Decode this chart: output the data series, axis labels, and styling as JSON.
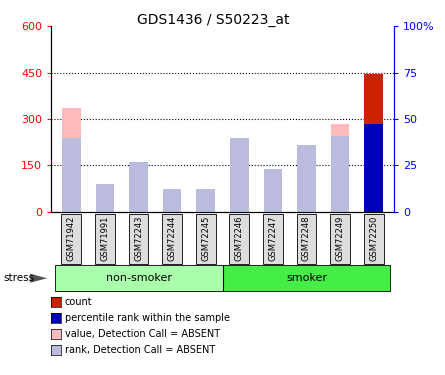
{
  "title": "GDS1436 / S50223_at",
  "samples": [
    "GSM71942",
    "GSM71991",
    "GSM72243",
    "GSM72244",
    "GSM72245",
    "GSM72246",
    "GSM72247",
    "GSM72248",
    "GSM72249",
    "GSM72250"
  ],
  "value_absent": [
    335,
    30,
    160,
    75,
    55,
    215,
    135,
    210,
    285,
    0
  ],
  "rank_absent": [
    240,
    90,
    160,
    75,
    75,
    240,
    140,
    215,
    245,
    0
  ],
  "count_value": [
    0,
    0,
    0,
    0,
    0,
    0,
    0,
    0,
    0,
    445
  ],
  "percentile_rank": [
    0,
    0,
    0,
    0,
    0,
    0,
    0,
    0,
    0,
    285
  ],
  "ylim": [
    0,
    600
  ],
  "yticks_left": [
    0,
    150,
    300,
    450,
    600
  ],
  "yticks_right_vals": [
    0,
    150,
    300,
    450,
    600
  ],
  "yticks_right_labels": [
    "0",
    "25",
    "50",
    "75",
    "100%"
  ],
  "dotted_lines": [
    150,
    300,
    450
  ],
  "groups": [
    {
      "label": "non-smoker",
      "start": 0,
      "end": 5,
      "color": "#AAFFAA"
    },
    {
      "label": "smoker",
      "start": 5,
      "end": 10,
      "color": "#44EE44"
    }
  ],
  "stress_label": "stress",
  "color_count": "#CC2200",
  "color_percentile": "#0000BB",
  "color_value_absent": "#FFBBBB",
  "color_rank_absent": "#BBBBDD",
  "legend_items": [
    {
      "label": "count",
      "color": "#CC2200"
    },
    {
      "label": "percentile rank within the sample",
      "color": "#0000BB"
    },
    {
      "label": "value, Detection Call = ABSENT",
      "color": "#FFBBBB"
    },
    {
      "label": "rank, Detection Call = ABSENT",
      "color": "#BBBBDD"
    }
  ],
  "bar_width": 0.55,
  "title_fontsize": 10,
  "tick_fontsize": 8,
  "sample_fontsize": 6
}
